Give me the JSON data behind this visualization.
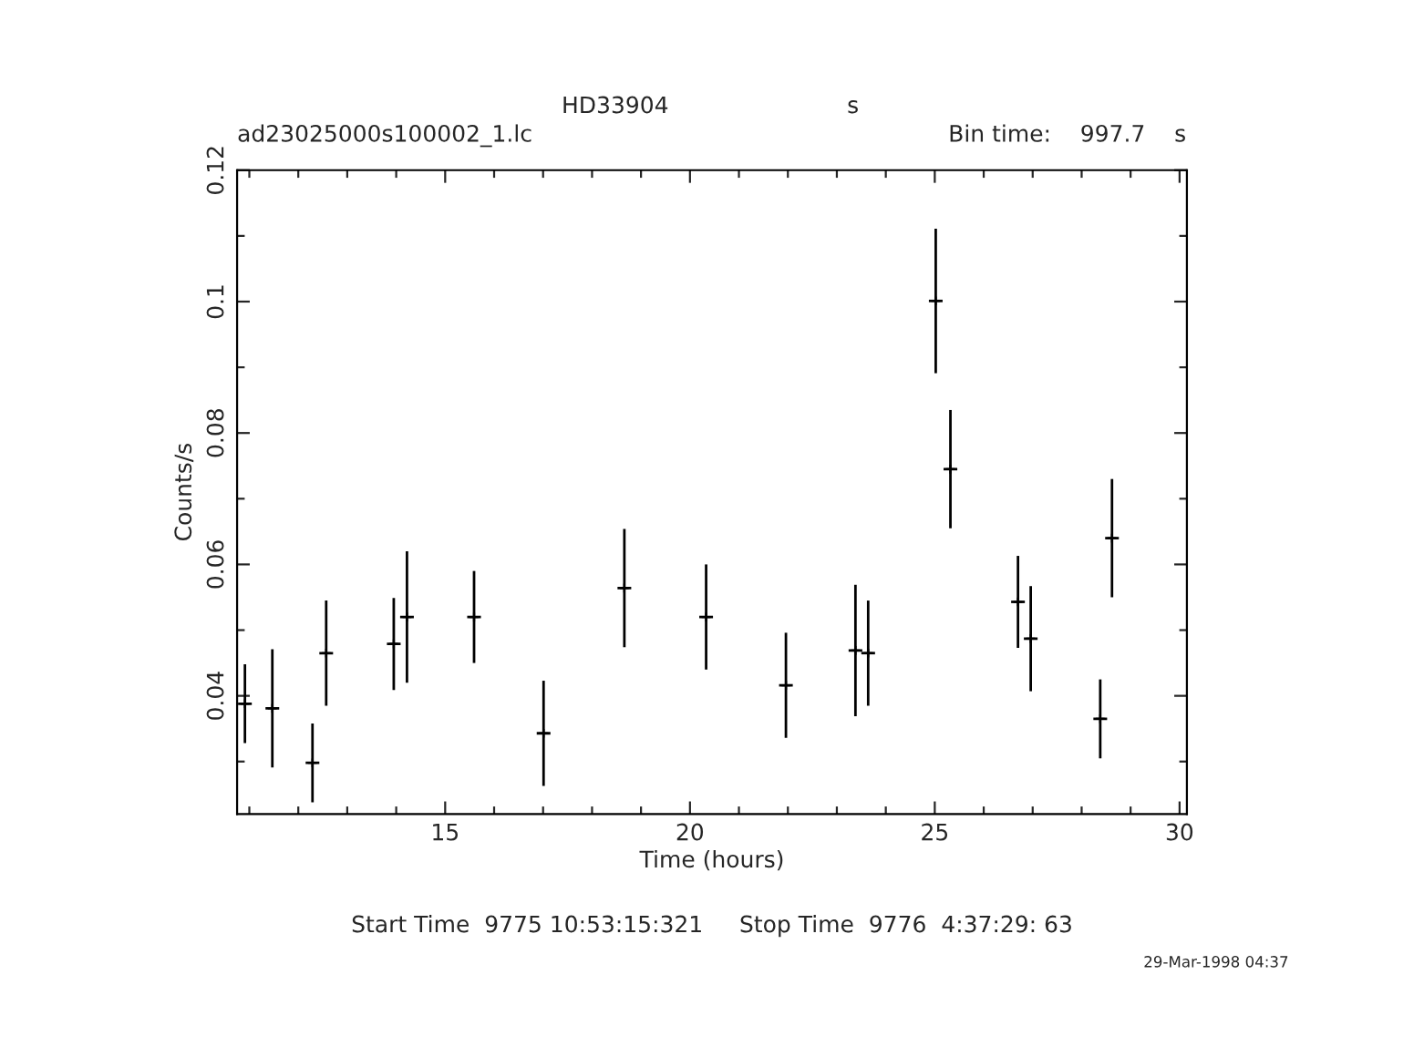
{
  "chart_data": {
    "type": "scatter",
    "title": "HD33904",
    "xlabel": "Time (hours)",
    "ylabel": "Counts/s",
    "marker": "cross",
    "grid": false,
    "legend": false,
    "annotations": [
      "s",
      "ad23025000s100002_1.lc",
      "Bin time:    997.7    s",
      "Start Time  9775 10:53:15:321     Stop Time  9776  4:37:29: 63",
      "29-Mar-1998 04:37"
    ],
    "series": [
      {
        "color": "#000000",
        "x": [
          10.91,
          11.47,
          12.29,
          12.57,
          13.95,
          14.22,
          15.59,
          17.01,
          18.66,
          20.33,
          21.96,
          23.38,
          23.64,
          25.02,
          25.32,
          26.7,
          26.96,
          28.38,
          28.62
        ],
        "values": [
          0.0388,
          0.0381,
          0.0298,
          0.0465,
          0.0479,
          0.052,
          0.052,
          0.0343,
          0.0564,
          0.052,
          0.0416,
          0.0469,
          0.0465,
          0.1001,
          0.0745,
          0.0543,
          0.0487,
          0.0365,
          0.064
        ],
        "errors": [
          0.006,
          0.009,
          0.006,
          0.008,
          0.007,
          0.01,
          0.007,
          0.008,
          0.009,
          0.008,
          0.008,
          0.01,
          0.008,
          0.011,
          0.009,
          0.007,
          0.008,
          0.006,
          0.009
        ],
        "xerrors": [
          0.14,
          0.14,
          0.14,
          0.14,
          0.14,
          0.14,
          0.14,
          0.14,
          0.14,
          0.14,
          0.14,
          0.14,
          0.14,
          0.14,
          0.14,
          0.14,
          0.14,
          0.14,
          0.14
        ]
      }
    ],
    "xlim": [
      10.75,
      30.15
    ],
    "ylim": [
      0.022,
      0.12
    ],
    "xticks": [
      {
        "value": 11,
        "label": null
      },
      {
        "value": 12,
        "label": null
      },
      {
        "value": 13,
        "label": null
      },
      {
        "value": 14,
        "label": null
      },
      15,
      {
        "value": 16,
        "label": null
      },
      {
        "value": 17,
        "label": null
      },
      {
        "value": 18,
        "label": null
      },
      {
        "value": 19,
        "label": null
      },
      20,
      {
        "value": 21,
        "label": null
      },
      {
        "value": 22,
        "label": null
      },
      {
        "value": 23,
        "label": null
      },
      {
        "value": 24,
        "label": null
      },
      25,
      {
        "value": 26,
        "label": null
      },
      {
        "value": 27,
        "label": null
      },
      {
        "value": 28,
        "label": null
      },
      {
        "value": 29,
        "label": null
      },
      30
    ],
    "yticks": [
      {
        "value": 0.03,
        "label": null
      },
      0.04,
      {
        "value": 0.05,
        "label": null
      },
      0.06,
      {
        "value": 0.07,
        "label": null
      },
      0.08,
      {
        "value": 0.09,
        "label": null
      },
      0.1,
      {
        "value": 0.11,
        "label": null
      },
      0.12
    ]
  }
}
